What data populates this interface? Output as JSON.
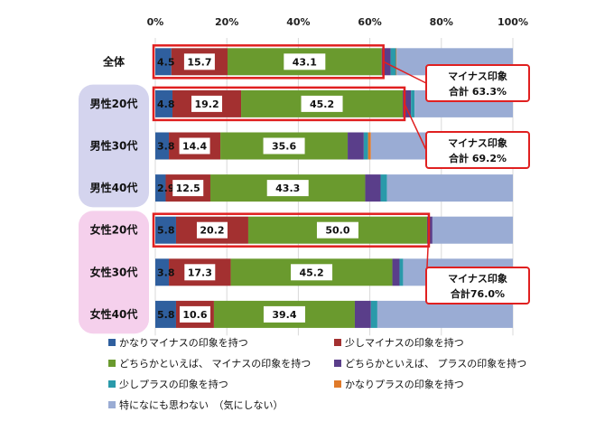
{
  "chart_data": {
    "type": "bar",
    "orientation": "horizontal",
    "stacked": true,
    "percent": true,
    "xlim": [
      0,
      100
    ],
    "x_ticks": [
      "0%",
      "20%",
      "40%",
      "60%",
      "80%",
      "100%"
    ],
    "x_tick_values": [
      0,
      20,
      40,
      60,
      80,
      100
    ],
    "grid": true,
    "legend_position": "bottom",
    "categories": [
      "全体",
      "男性20代",
      "男性30代",
      "男性40代",
      "女性20代",
      "女性30代",
      "女性40代"
    ],
    "series": [
      {
        "name": "かなりマイナスの印象を持つ",
        "color": "#2f5f9e",
        "values": [
          4.5,
          4.8,
          3.8,
          2.9,
          5.8,
          3.8,
          5.8
        ]
      },
      {
        "name": "少しマイナスの印象を持つ",
        "color": "#a33030",
        "values": [
          15.7,
          19.2,
          14.4,
          12.5,
          20.2,
          17.3,
          10.6
        ]
      },
      {
        "name": "どちらかといえば、 マイナスの印象を持つ",
        "color": "#6a9a2e",
        "values": [
          43.1,
          45.2,
          35.6,
          43.3,
          50.0,
          45.2,
          39.4
        ]
      },
      {
        "name": "どちらかといえば、 プラスの印象を持つ",
        "color": "#5a3e8a",
        "values": [
          2.5,
          2.3,
          4.5,
          4.3,
          1.5,
          2.0,
          4.5
        ]
      },
      {
        "name": "少しプラスの印象を持つ",
        "color": "#2a9aaa",
        "values": [
          1.5,
          1.0,
          1.2,
          1.8,
          0.0,
          1.0,
          1.8
        ]
      },
      {
        "name": "かなりプラスの印象を持つ",
        "color": "#e07a2a",
        "values": [
          0.2,
          0.0,
          0.8,
          0.0,
          0.0,
          0.0,
          0.0
        ]
      },
      {
        "name": "特になにも思わない　（気にしない）",
        "color": "#9aacd4",
        "values": [
          32.5,
          27.5,
          39.7,
          35.2,
          22.5,
          30.7,
          37.9
        ]
      }
    ],
    "data_labels": [
      [
        "4.5",
        "15.7",
        "43.1"
      ],
      [
        "4.8",
        "19.2",
        "45.2"
      ],
      [
        "3.8",
        "14.4",
        "35.6"
      ],
      [
        "2.9",
        "12.5",
        "43.3"
      ],
      [
        "5.8",
        "20.2",
        "50.0"
      ],
      [
        "3.8",
        "17.3",
        "45.2"
      ],
      [
        "5.8",
        "10.6",
        "39.4"
      ]
    ],
    "group_backgrounds": [
      {
        "rows": [
          1,
          2,
          3
        ],
        "color": "#d4d4ee"
      },
      {
        "rows": [
          4,
          5,
          6
        ],
        "color": "#f5d0ec"
      }
    ],
    "highlighted_rows": [
      0,
      1,
      4
    ],
    "highlight_color": "#e02020",
    "callouts": [
      {
        "row": 0,
        "line1": "マイナス印象",
        "line2": "合計 63.3%"
      },
      {
        "row": 1,
        "line1": "マイナス印象",
        "line2": "合計 69.2%"
      },
      {
        "row": 4,
        "line1": "マイナス印象",
        "line2": "合計76.0%"
      }
    ]
  }
}
